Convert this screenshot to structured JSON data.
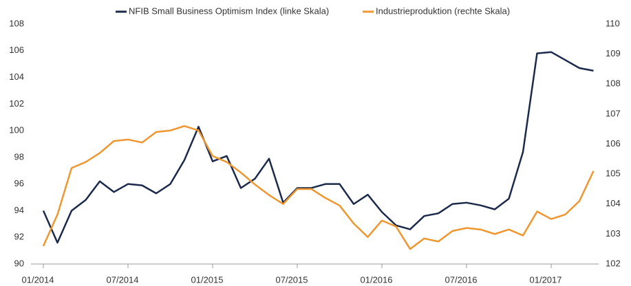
{
  "chart_data": {
    "type": "line",
    "categories": [
      "01/2014",
      null,
      null,
      null,
      null,
      null,
      "07/2014",
      null,
      null,
      null,
      null,
      null,
      "01/2015",
      null,
      null,
      null,
      null,
      null,
      "07/2015",
      null,
      null,
      null,
      null,
      null,
      "01/2016",
      null,
      null,
      null,
      null,
      null,
      "07/2016",
      null,
      null,
      null,
      null,
      null,
      "01/2017",
      null,
      null,
      null
    ],
    "series": [
      {
        "name": "NFIB Small Business Optimism Index (linke Skala)",
        "color": "#1b2a4a",
        "values": [
          94.0,
          91.6,
          94.0,
          94.8,
          96.2,
          95.4,
          96.0,
          95.9,
          95.3,
          96.0,
          97.8,
          100.3,
          97.7,
          98.1,
          95.7,
          96.4,
          97.9,
          94.6,
          95.7,
          95.7,
          96.0,
          96.0,
          94.5,
          95.2,
          93.9,
          92.9,
          92.6,
          93.6,
          93.8,
          94.5,
          94.6,
          94.4,
          94.1,
          94.9,
          98.4,
          105.8,
          105.9,
          105.3,
          104.7,
          104.5
        ]
      },
      {
        "name": "Industrieproduktion (rechte Skala)",
        "color": "#f0962f",
        "axis": "y2",
        "values": [
          102.6,
          103.65,
          105.2,
          105.4,
          105.7,
          106.1,
          106.15,
          106.05,
          106.4,
          106.45,
          106.6,
          106.45,
          105.6,
          105.4,
          105.05,
          104.65,
          104.3,
          104.0,
          104.5,
          104.5,
          104.2,
          103.95,
          103.35,
          102.9,
          103.45,
          103.25,
          102.5,
          102.85,
          102.75,
          103.1,
          103.2,
          103.15,
          103.0,
          103.15,
          102.95,
          103.75,
          103.5,
          103.65,
          104.1,
          105.1
        ]
      }
    ],
    "ylim": [
      90,
      108
    ],
    "yticks": [
      90,
      92,
      94,
      96,
      98,
      100,
      102,
      104,
      106,
      108
    ],
    "y2lim": [
      102,
      110
    ],
    "y2ticks": [
      102,
      103,
      104,
      105,
      106,
      107,
      108,
      109,
      110
    ],
    "legend": "top",
    "grid": false
  }
}
